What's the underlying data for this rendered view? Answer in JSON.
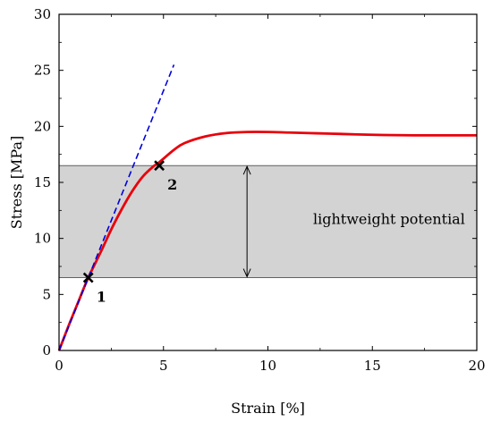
{
  "chart_data": {
    "type": "line",
    "xlabel": "Strain [%]",
    "ylabel": "Stress [MPa]",
    "xlim": [
      0,
      20
    ],
    "ylim": [
      0,
      30
    ],
    "xticks": [
      0,
      5,
      10,
      15,
      20
    ],
    "yticks": [
      0,
      5,
      10,
      15,
      20,
      25,
      30
    ],
    "grid": false,
    "series": [
      {
        "style": "solid",
        "color": "#e8000b",
        "x": [
          0,
          0.5,
          1.0,
          1.4,
          2.0,
          2.5,
          3.0,
          3.5,
          4.0,
          4.5,
          4.8,
          5.5,
          6.0,
          7.0,
          8.0,
          9.0,
          10.0,
          11.0,
          12.0,
          13.0,
          15.0,
          17.0,
          20.0
        ],
        "y": [
          0,
          2.4,
          4.7,
          6.5,
          8.8,
          10.8,
          12.6,
          14.2,
          15.5,
          16.4,
          16.8,
          17.9,
          18.5,
          19.1,
          19.4,
          19.5,
          19.5,
          19.45,
          19.4,
          19.35,
          19.25,
          19.2,
          19.2
        ]
      },
      {
        "style": "dashed",
        "color": "#0000dd",
        "x": [
          0,
          5.5
        ],
        "y": [
          0,
          25.5
        ]
      }
    ],
    "band": {
      "y_from": 6.5,
      "y_to": 16.5,
      "color": "#d3d3d3"
    },
    "markers": [
      {
        "label": "1",
        "x": 1.4,
        "y": 6.5
      },
      {
        "label": "2",
        "x": 4.8,
        "y": 16.5
      }
    ],
    "annotations": [
      {
        "text": "lightweight potential",
        "x": 15.8,
        "y": 11.7
      }
    ],
    "double_arrow": {
      "x": 9.0,
      "y_from": 6.5,
      "y_to": 16.5
    }
  }
}
